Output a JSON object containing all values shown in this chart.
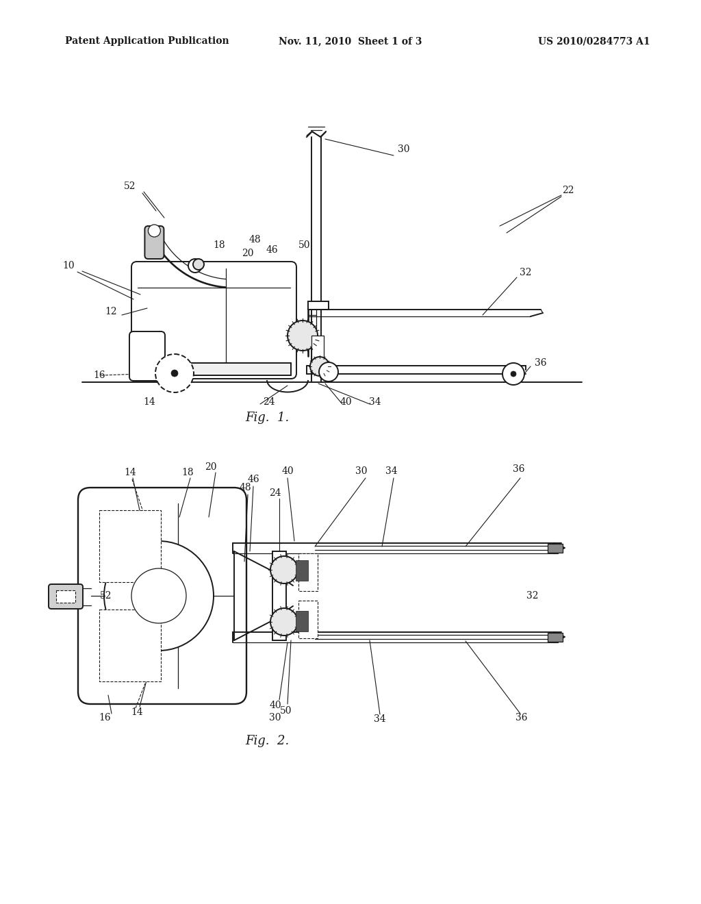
{
  "background_color": "#ffffff",
  "header_left": "Patent Application Publication",
  "header_center": "Nov. 11, 2010  Sheet 1 of 3",
  "header_right": "US 2010/0284773 A1",
  "fig1_caption": "Fig.  1.",
  "fig2_caption": "Fig.  2.",
  "line_color": "#1a1a1a",
  "lw": 1.4,
  "lwt": 0.9,
  "lwd": 0.8,
  "fs": 10,
  "fs_cap": 13,
  "fs_hdr": 10
}
